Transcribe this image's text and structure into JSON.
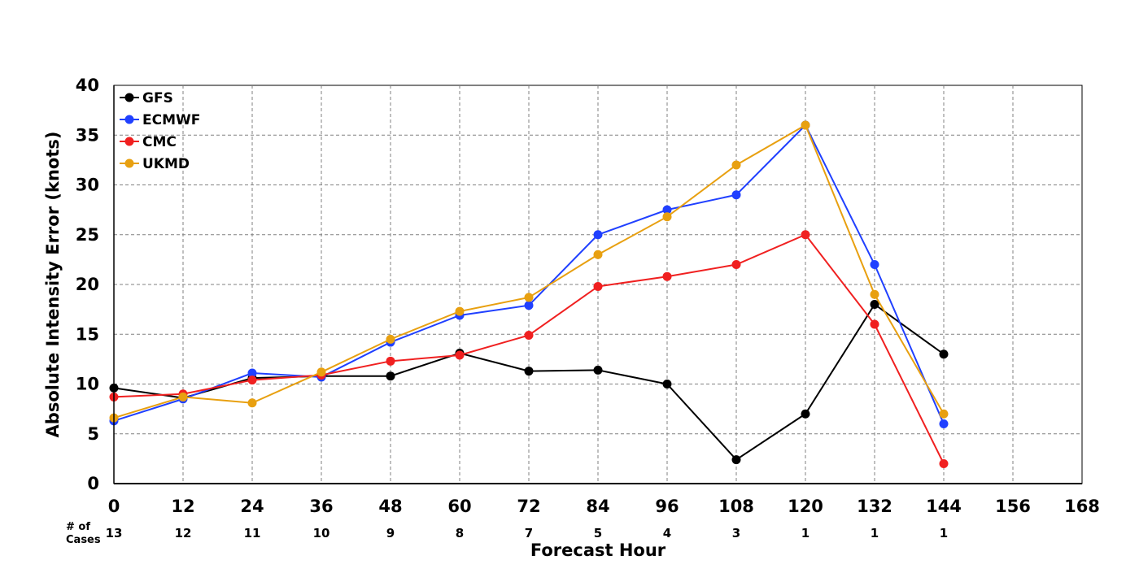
{
  "chart_data": {
    "type": "line",
    "title": "",
    "xlabel": "Forecast Hour",
    "ylabel": "Absolute Intensity Error (knots)",
    "x": [
      0,
      12,
      24,
      36,
      48,
      60,
      72,
      84,
      96,
      108,
      120,
      132,
      144
    ],
    "xticks": [
      "0",
      "12",
      "24",
      "36",
      "48",
      "60",
      "72",
      "84",
      "96",
      "108",
      "120",
      "132",
      "144",
      "156",
      "168"
    ],
    "xlim": [
      0,
      168
    ],
    "yticks": [
      "0",
      "5",
      "10",
      "15",
      "20",
      "25",
      "30",
      "35",
      "40"
    ],
    "ylim": [
      0,
      40
    ],
    "grid": true,
    "legend_position": "top-left",
    "series": [
      {
        "name": "GFS",
        "color": "#000000",
        "values": [
          9.6,
          8.6,
          10.6,
          10.8,
          10.8,
          13.1,
          11.3,
          11.4,
          10.0,
          2.4,
          7.0,
          18.0,
          13.0
        ]
      },
      {
        "name": "ECMWF",
        "color": "#2040ff",
        "values": [
          6.3,
          8.5,
          11.1,
          10.7,
          14.2,
          16.9,
          17.9,
          25.0,
          27.5,
          29.0,
          36.0,
          22.0,
          6.0
        ]
      },
      {
        "name": "CMC",
        "color": "#f02020",
        "values": [
          8.7,
          9.0,
          10.4,
          10.9,
          12.3,
          12.9,
          14.9,
          19.8,
          20.8,
          22.0,
          25.0,
          16.0,
          2.0
        ]
      },
      {
        "name": "UKMD",
        "color": "#e8a010",
        "values": [
          6.6,
          8.7,
          8.1,
          11.2,
          14.5,
          17.3,
          18.7,
          23.0,
          26.8,
          32.0,
          36.0,
          19.0,
          7.0
        ]
      }
    ],
    "cases_label": "# of\nCases",
    "cases": [
      "13",
      "12",
      "11",
      "10",
      "9",
      "8",
      "7",
      "5",
      "4",
      "3",
      "1",
      "1",
      "1"
    ]
  }
}
